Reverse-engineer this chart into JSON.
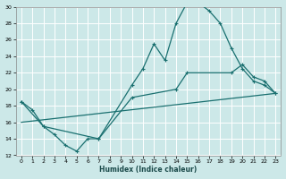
{
  "xlabel": "Humidex (Indice chaleur)",
  "bg_color": "#cce8e8",
  "grid_color": "#ffffff",
  "line_color": "#1a7070",
  "xlim": [
    -0.5,
    23.5
  ],
  "ylim": [
    12,
    30
  ],
  "yticks": [
    12,
    14,
    16,
    18,
    20,
    22,
    24,
    26,
    28,
    30
  ],
  "xticks": [
    0,
    1,
    2,
    3,
    4,
    5,
    6,
    7,
    8,
    9,
    10,
    11,
    12,
    13,
    14,
    15,
    16,
    17,
    18,
    19,
    20,
    21,
    22,
    23
  ],
  "line1_x": [
    0,
    1,
    2,
    3,
    4,
    5,
    6,
    7,
    10,
    11,
    12,
    13,
    14,
    15,
    16,
    17,
    18,
    19,
    20,
    21,
    22,
    23
  ],
  "line1_y": [
    18.5,
    17.5,
    15.5,
    14.5,
    13.2,
    12.5,
    14.0,
    14.0,
    20.5,
    22.5,
    25.5,
    23.5,
    28.0,
    30.5,
    30.5,
    29.5,
    28.0,
    25.0,
    22.5,
    21.0,
    20.5,
    19.5
  ],
  "line2_x": [
    0,
    2,
    7,
    10,
    14,
    15,
    19,
    20,
    21,
    22,
    23
  ],
  "line2_y": [
    18.5,
    15.5,
    14.0,
    19.0,
    20.0,
    22.0,
    22.0,
    23.0,
    21.5,
    21.0,
    19.5
  ],
  "line3_x": [
    0,
    23
  ],
  "line3_y": [
    16.0,
    19.5
  ]
}
